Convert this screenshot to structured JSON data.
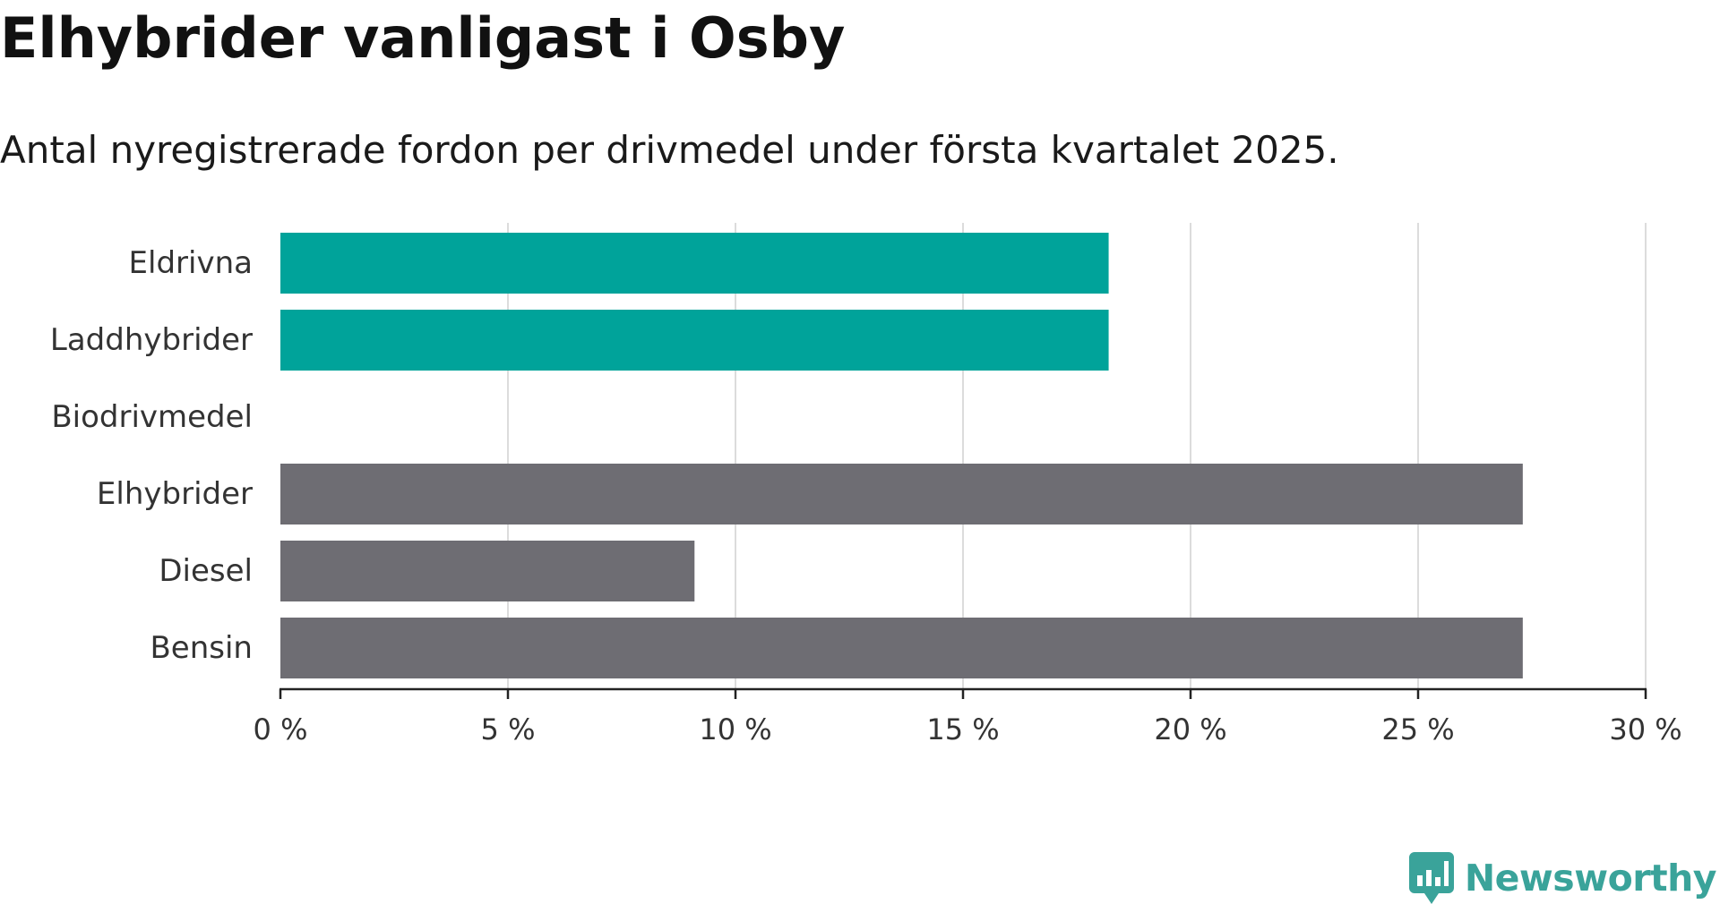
{
  "title": "Elhybrider vanligast i Osby",
  "subtitle": "Antal nyregistrerade fordon per drivmedel under första kvartalet 2025.",
  "brand": {
    "name": "Newsworthy",
    "icon": "newsworthy-logo-icon",
    "color": "#3aa39a"
  },
  "chart_data": {
    "type": "bar",
    "orientation": "horizontal",
    "categories": [
      "Eldrivna",
      "Laddhybrider",
      "Biodrivmedel",
      "Elhybrider",
      "Diesel",
      "Bensin"
    ],
    "values": [
      18.2,
      18.2,
      0,
      27.3,
      9.1,
      27.3
    ],
    "colors": [
      "#00a39a",
      "#00a39a",
      "#00a39a",
      "#6e6d73",
      "#6e6d73",
      "#6e6d73"
    ],
    "xlim": [
      0,
      30
    ],
    "xticks": [
      0,
      5,
      10,
      15,
      20,
      25,
      30
    ],
    "xtick_labels": [
      "0 %",
      "5 %",
      "10 %",
      "15 %",
      "20 %",
      "25 %",
      "30 %"
    ],
    "grid": true,
    "legend": "none"
  }
}
